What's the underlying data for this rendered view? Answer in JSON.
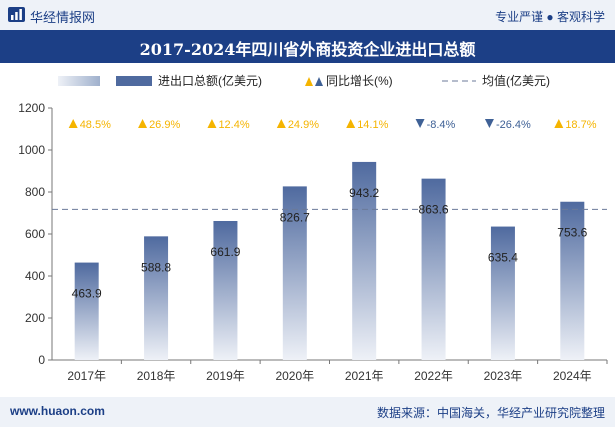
{
  "header": {
    "brand": "华经情报网",
    "slogan": "专业严谨 ● 客观科学"
  },
  "footer": {
    "url": "www.huaon.com",
    "source": "数据来源：中国海关，华经产业研究院整理"
  },
  "colors": {
    "header_bg": "#1c3f86",
    "bar_top": "#4f6a9f",
    "bar_bottom": "#eef1f7",
    "up": "#f5b400",
    "down": "#3f6196",
    "avg_line": "#6b7a99"
  },
  "chart_data": {
    "type": "bar",
    "title": "2017-2024年四川省外商投资企业进出口总额",
    "categories": [
      "2017年",
      "2018年",
      "2019年",
      "2020年",
      "2021年",
      "2022年",
      "2023年",
      "2024年"
    ],
    "series": [
      {
        "name": "进出口总额(亿美元)",
        "values": [
          463.9,
          588.8,
          661.9,
          826.7,
          943.2,
          863.6,
          635.4,
          753.6
        ]
      }
    ],
    "value_labels": [
      "463.9",
      "588.8",
      "661.9",
      "826.7",
      "943.2",
      "863.6",
      "635.4",
      "753.6"
    ],
    "growth": {
      "name": "同比增长(%)",
      "values": [
        48.5,
        26.9,
        12.4,
        24.9,
        14.1,
        -8.4,
        -26.4,
        18.7
      ],
      "labels": [
        "48.5%",
        "26.9%",
        "12.4%",
        "24.9%",
        "14.1%",
        "-8.4%",
        "-26.4%",
        "18.7%"
      ]
    },
    "average": {
      "name": "均值(亿美元)",
      "value": 717.1
    },
    "ylim": [
      0,
      1200
    ],
    "yticks": [
      "0",
      "200",
      "400",
      "600",
      "800",
      "1000",
      "1200"
    ],
    "legend_position": "top",
    "grid": false
  }
}
